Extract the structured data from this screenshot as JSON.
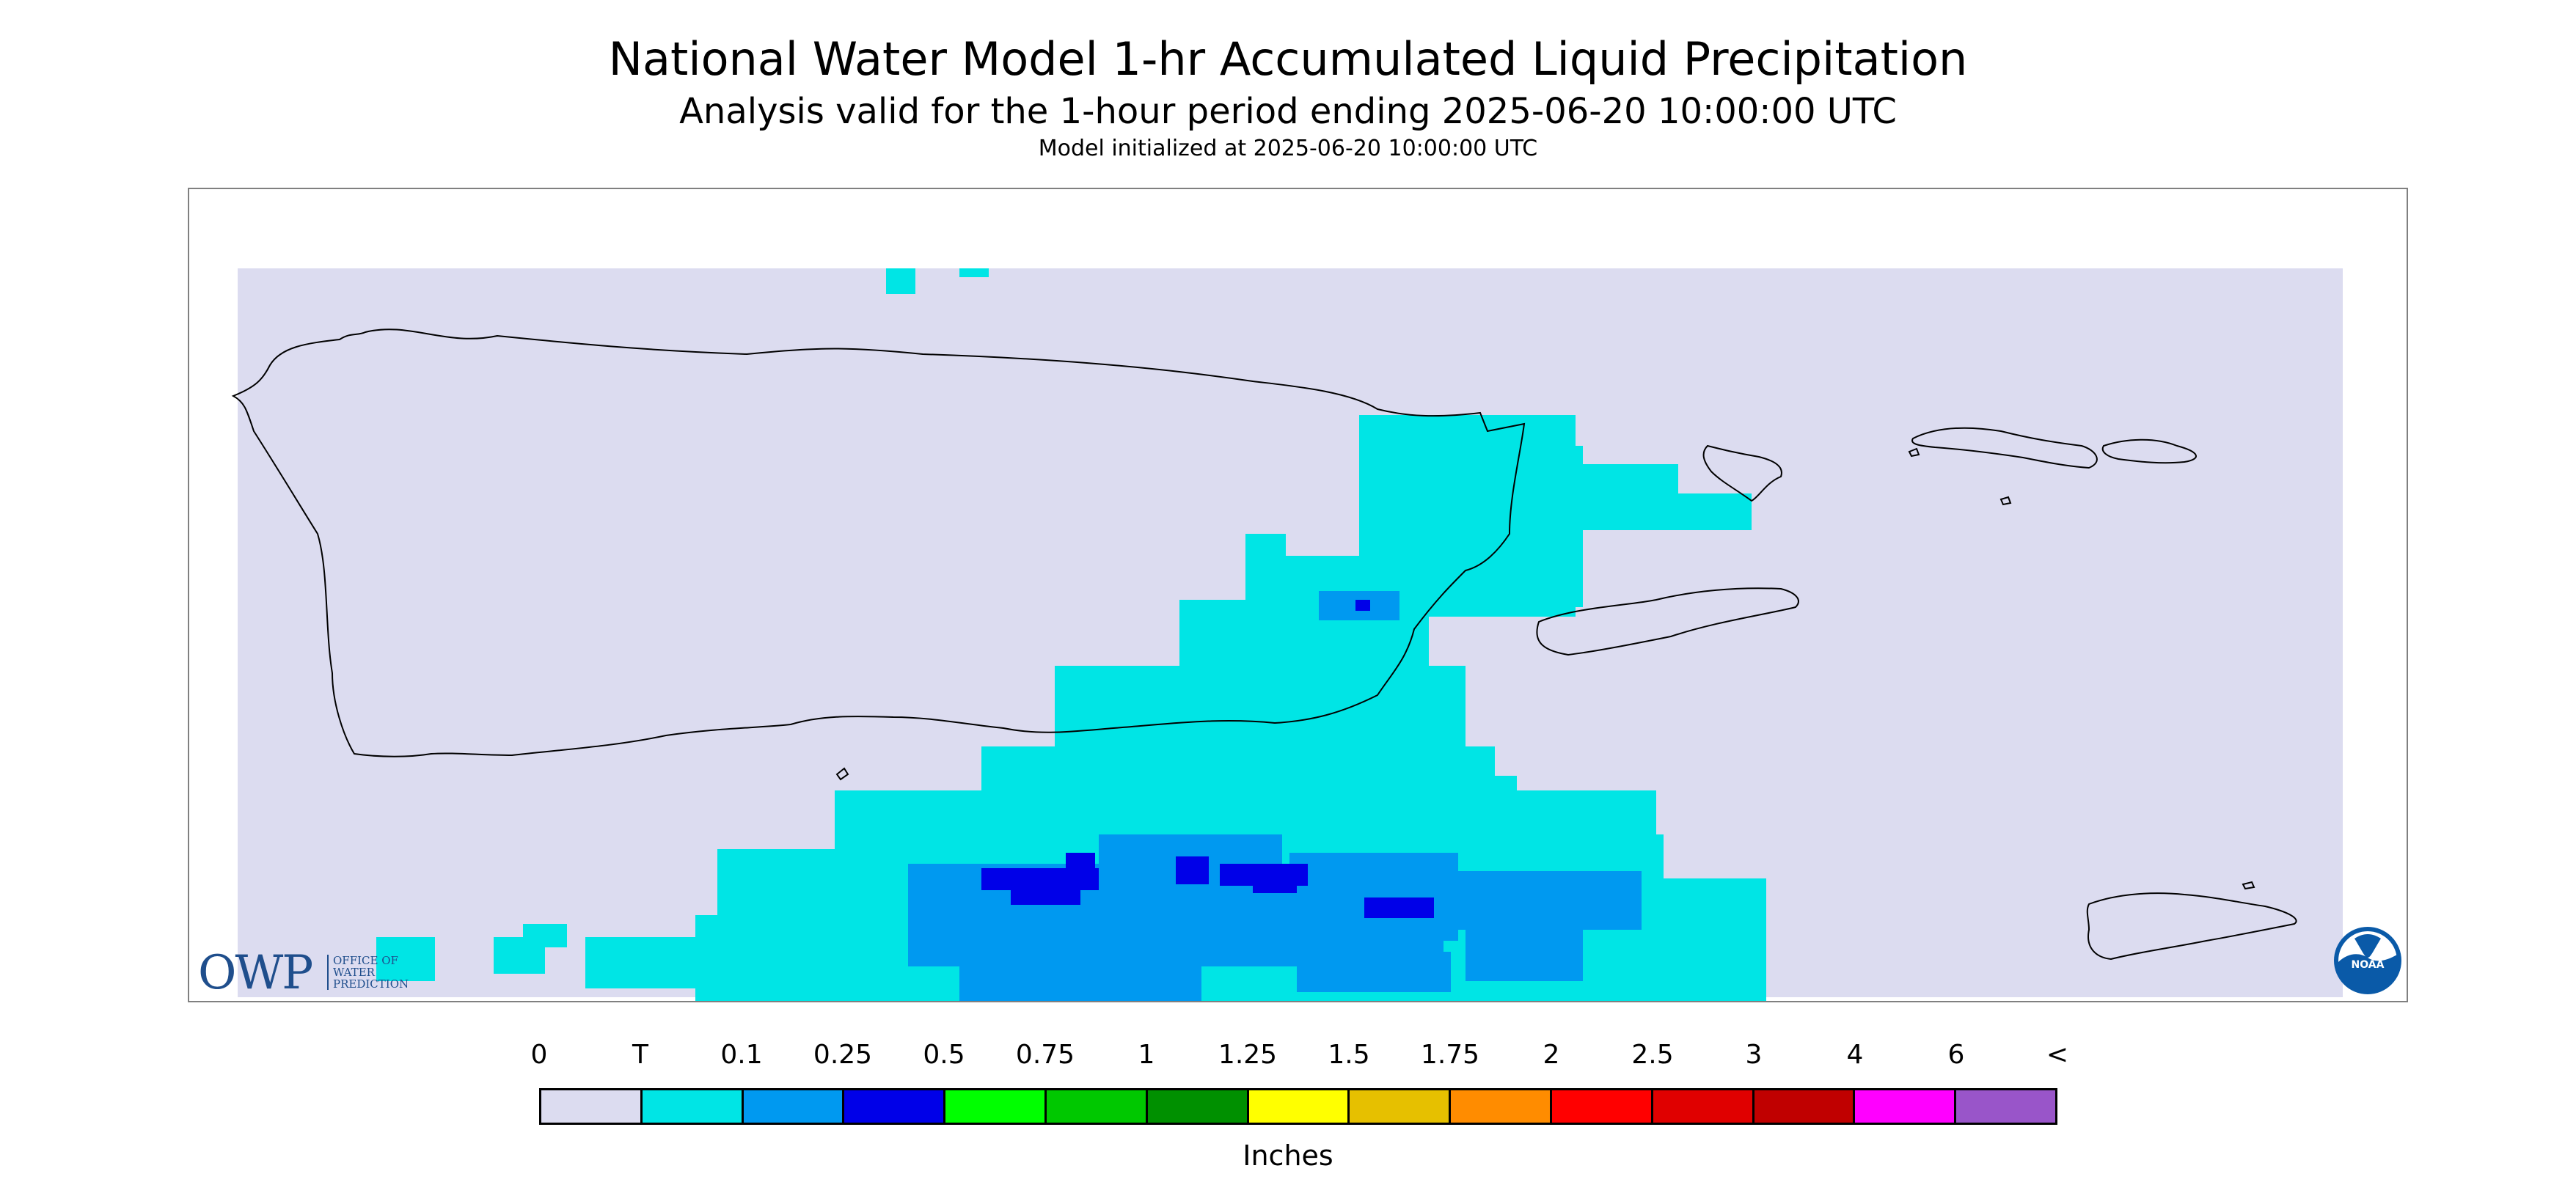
{
  "header": {
    "title": "National Water Model 1-hr Accumulated Liquid Precipitation",
    "subtitle": "Analysis valid for the 1-hour period ending 2025-06-20 10:00:00 UTC",
    "init_line": "Model initialized at 2025-06-20 10:00:00 UTC"
  },
  "logos": {
    "owp_mark": "OWP",
    "owp_text": [
      "OFFICE OF",
      "WATER",
      "PREDICTION"
    ],
    "noaa_text": "NOAA"
  },
  "legend": {
    "tick_labels": [
      "0",
      "T",
      "0.1",
      "0.25",
      "0.5",
      "0.75",
      "1",
      "1.25",
      "1.5",
      "1.75",
      "2",
      "2.5",
      "3",
      "4",
      "6",
      "<"
    ],
    "swatches": [
      "#dcdcf0",
      "#00e5e5",
      "#0099f0",
      "#0000e8",
      "#00ff00",
      "#00c800",
      "#009000",
      "#ffff00",
      "#e6c000",
      "#ff8c00",
      "#ff0000",
      "#e00000",
      "#c00000",
      "#ff00ff",
      "#9955c9"
    ],
    "units": "Inches"
  },
  "colors": {
    "background_field": "#dcdcf0",
    "trace": "#00e5e5",
    "light_blue": "#0099f0",
    "dark_blue": "#0000e8",
    "coastline": "#000000",
    "frame": "#808080",
    "owp_blue": "#1f4e8c",
    "noaa_blue": "#0a5aa8"
  }
}
